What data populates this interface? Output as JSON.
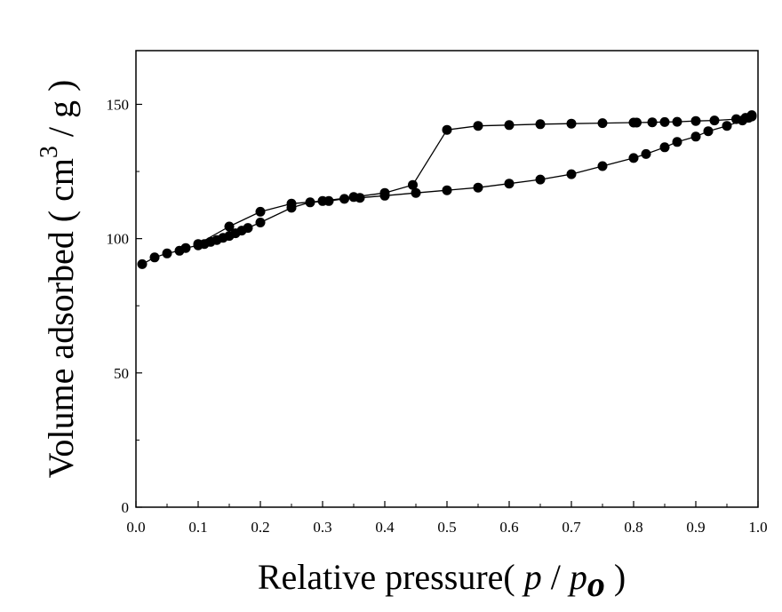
{
  "chart_data": {
    "type": "scatter",
    "title": "",
    "xlabel": {
      "prefix": "Relative pressure( ",
      "var1": "p",
      "slash": " / ",
      "var2": "p",
      "subscript": "o",
      "suffix": " )"
    },
    "ylabel": {
      "prefix": "Volume adsorbed ( cm",
      "superscript": "3",
      "suffix": " / g )"
    },
    "xlim": [
      0.0,
      1.0
    ],
    "ylim": [
      0,
      170
    ],
    "xticks": [
      "0.0",
      "0.1",
      "0.2",
      "0.3",
      "0.4",
      "0.5",
      "0.6",
      "0.7",
      "0.8",
      "0.9",
      "1.0"
    ],
    "yticks": [
      "0",
      "50",
      "100",
      "150"
    ],
    "grid": false,
    "legend": "none",
    "series": [
      {
        "marker": "filled-circle",
        "line": "solid",
        "color": "#000000",
        "x": [
          0.01,
          0.03,
          0.05,
          0.07,
          0.08,
          0.1,
          0.11,
          0.12,
          0.13,
          0.14,
          0.15,
          0.16,
          0.17,
          0.18,
          0.2,
          0.25,
          0.28,
          0.31,
          0.335,
          0.36,
          0.4,
          0.45,
          0.5,
          0.55,
          0.6,
          0.65,
          0.7,
          0.75,
          0.8,
          0.82,
          0.85,
          0.87,
          0.9,
          0.92,
          0.95,
          0.975,
          0.985,
          0.99
        ],
        "y": [
          90.5,
          93,
          94.5,
          95.5,
          96.5,
          97.5,
          98,
          98.8,
          99.5,
          100.3,
          101,
          102,
          103,
          104,
          106,
          111.5,
          113.5,
          114,
          114.8,
          115.2,
          116,
          117,
          118,
          119,
          120.5,
          122,
          124,
          127,
          130,
          131.5,
          134,
          136,
          138,
          140,
          142,
          144,
          145,
          146
        ]
      },
      {
        "marker": "filled-circle",
        "line": "solid",
        "color": "#000000",
        "x": [
          0.99,
          0.98,
          0.965,
          0.93,
          0.9,
          0.87,
          0.85,
          0.83,
          0.805,
          0.8,
          0.75,
          0.7,
          0.65,
          0.6,
          0.55,
          0.5,
          0.445,
          0.4,
          0.35,
          0.3,
          0.25,
          0.2,
          0.15,
          0.1
        ],
        "y": [
          145.5,
          145,
          144.5,
          144,
          143.8,
          143.5,
          143.4,
          143.3,
          143.2,
          143.2,
          143,
          142.8,
          142.6,
          142.3,
          142,
          140.5,
          120,
          117,
          115.5,
          114,
          113,
          110,
          104.5,
          98
        ]
      }
    ]
  }
}
